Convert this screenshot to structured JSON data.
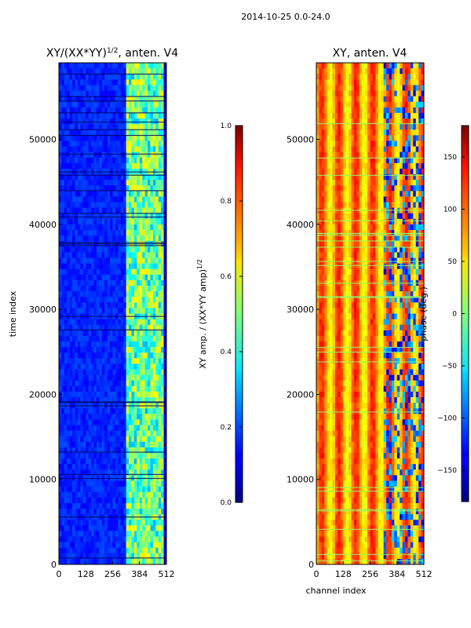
{
  "suptitle": "2014-10-25 0.0-24.0",
  "chart_data": [
    {
      "type": "heatmap",
      "title_main": "XY/(XX*YY)",
      "title_sup": "1/2",
      "title_tail": ", anten. V4",
      "xlabel": "",
      "ylabel": "time index",
      "xlim": [
        0,
        512
      ],
      "ylim": [
        0,
        59000
      ],
      "xticks": [
        "0",
        "128",
        "256",
        "384",
        "512"
      ],
      "yticks": [
        "0",
        "10000",
        "20000",
        "30000",
        "40000",
        "50000"
      ],
      "colorbar": {
        "label_main": "XY amp. / (XX*YY amp)",
        "label_sup": "1/2",
        "range": [
          0.0,
          1.0
        ],
        "ticks": [
          "0.0",
          "0.2",
          "0.4",
          "0.6",
          "0.8",
          "1.0"
        ],
        "colormap": "jet"
      }
    },
    {
      "type": "heatmap",
      "title_main": "XY, anten. V4",
      "xlabel": "channel index",
      "ylabel": "",
      "xlim": [
        0,
        512
      ],
      "ylim": [
        0,
        59000
      ],
      "xticks": [
        "0",
        "128",
        "256",
        "384",
        "512"
      ],
      "yticks": [
        "0",
        "10000",
        "20000",
        "30000",
        "40000",
        "50000"
      ],
      "colorbar": {
        "label": "phase (deg.)",
        "range": [
          -180,
          180
        ],
        "ticks": [
          "−150",
          "−100",
          "−50",
          "0",
          "50",
          "100",
          "150"
        ],
        "colormap": "jet"
      }
    }
  ]
}
